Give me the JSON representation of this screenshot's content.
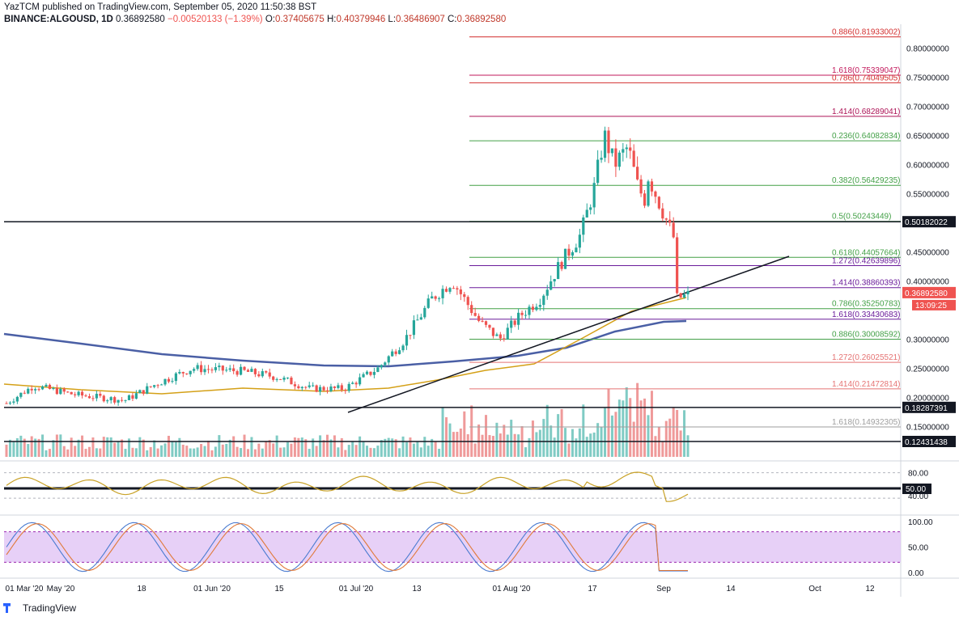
{
  "header": {
    "published": "YazTCM published on TradingView.com, September 05, 2020 11:50:38 BST",
    "symbol": "BINANCE:ALGOUSD, 1D",
    "price": "0.36892580",
    "change": "−0.00520133 (−1.39%)",
    "ohlc": {
      "o_label": "O:",
      "o": "0.37405675",
      "h_label": "H:",
      "h": "0.40379946",
      "l_label": "L:",
      "l": "0.36486907",
      "c_label": "C:",
      "c": "0.36892580"
    }
  },
  "footer": {
    "brand": "TradingView"
  },
  "colors": {
    "up": "#26a69a",
    "down": "#ef5350",
    "ma_long": "#4a5fa5",
    "ma_short": "#d4a017",
    "rsi": "#c9a227",
    "stoch_k": "#4a7bd0",
    "stoch_d": "#e07a3a",
    "stoch_band": "#e1c4f5"
  },
  "chart_data": {
    "type": "candlestick",
    "y_price_range": [
      0.1,
      0.83
    ],
    "price_axis_ticks": [
      "0.80000000",
      "0.75000000",
      "0.70000000",
      "0.65000000",
      "0.60000000",
      "0.55000000",
      "0.45000000",
      "0.40000000",
      "0.30000000",
      "0.25000000",
      "0.20000000",
      "0.15000000"
    ],
    "date_ticks": [
      "01 Mar '20",
      "May '20",
      "18",
      "01 Jun '20",
      "15",
      "01 Jul '20",
      "13",
      "01 Aug '20",
      "17",
      "Sep",
      "14",
      "Oct",
      "12"
    ],
    "fib_levels": [
      {
        "label": "0.886(0.81933002)",
        "value": 0.81933002,
        "color": "#d32f2f"
      },
      {
        "label": "0.786(0.74049505)",
        "value": 0.74049505,
        "color": "#d32f2f"
      },
      {
        "label": "1.618(0.75339047)",
        "value": 0.75339047,
        "color": "#c2185b"
      },
      {
        "label": "1.414(0.68289041)",
        "value": 0.68289041,
        "color": "#ad1457"
      },
      {
        "label": "0.236(0.64082834)",
        "value": 0.64082834,
        "color": "#43a047"
      },
      {
        "label": "0.382(0.56429235)",
        "value": 0.56429235,
        "color": "#43a047"
      },
      {
        "label": "0.5(0.50243449)",
        "value": 0.50243449,
        "color": "#43a047"
      },
      {
        "label": "0.618(0.44057664)",
        "value": 0.44057664,
        "color": "#43a047"
      },
      {
        "label": "1.272(0.42639896)",
        "value": 0.42639896,
        "color": "#6a1b9a"
      },
      {
        "label": "1.414(0.38860393)",
        "value": 0.38860393,
        "color": "#6a1b9a"
      },
      {
        "label": "0.786(0.35250783)",
        "value": 0.35250783,
        "color": "#43a047"
      },
      {
        "label": "1.618(0.33430683)",
        "value": 0.33430683,
        "color": "#6a1b9a"
      },
      {
        "label": "0.886(0.30008592)",
        "value": 0.30008592,
        "color": "#43a047"
      },
      {
        "label": "1.272(0.26025521)",
        "value": 0.26025521,
        "color": "#e57373"
      },
      {
        "label": "1.414(0.21472814)",
        "value": 0.21472814,
        "color": "#e57373"
      },
      {
        "label": "1.618(0.14932305)",
        "value": 0.14932305,
        "color": "#9e9e9e"
      }
    ],
    "horizontal_levels": [
      {
        "label": "0.50182022",
        "value": 0.50182022
      },
      {
        "label": "0.18287391",
        "value": 0.18287391
      },
      {
        "label": "0.12431438",
        "value": 0.12431438
      }
    ],
    "current_price": {
      "label": "0.36892580",
      "value": 0.3689258,
      "countdown": "13:09:25"
    },
    "rsi": {
      "ticks": [
        "80.00",
        "40.00"
      ],
      "midline_label": "50.00"
    },
    "stoch": {
      "ticks": [
        "100.00",
        "50.00",
        "0.00"
      ]
    }
  }
}
